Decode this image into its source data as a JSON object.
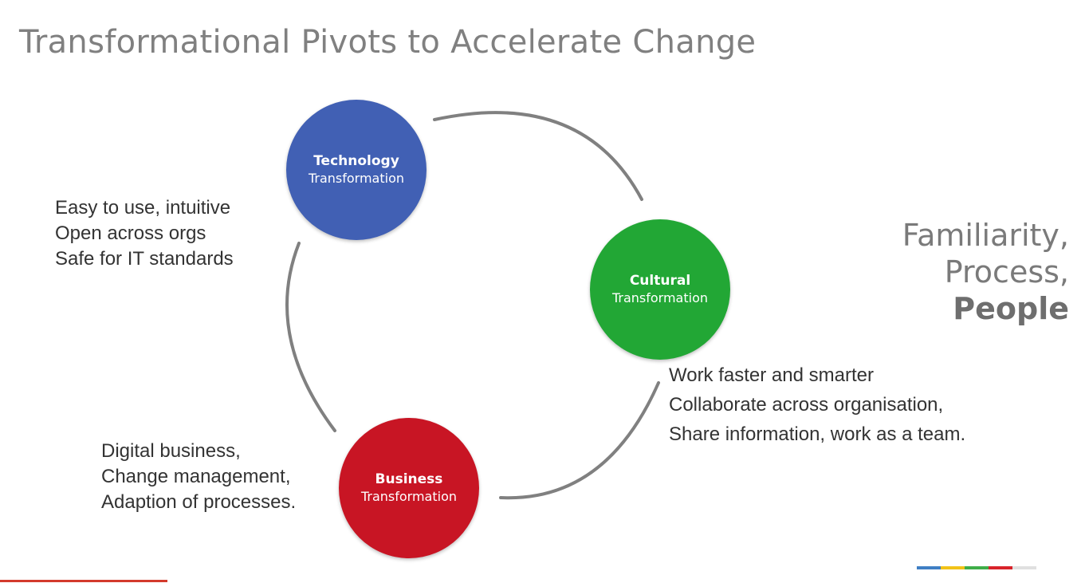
{
  "title": "Transformational Pivots to Accelerate Change",
  "nodes": {
    "technology": {
      "label_bold": "Technology",
      "label": "Transformation",
      "color": "#4160b4"
    },
    "cultural": {
      "label_bold": "Cultural",
      "label": "Transformation",
      "color": "#22a735"
    },
    "business": {
      "label_bold": "Business",
      "label": "Transformation",
      "color": "#c81524"
    }
  },
  "notes": {
    "technology": [
      "Easy to use, intuitive",
      "Open across orgs",
      "Safe for IT standards"
    ],
    "business": [
      "Digital business,",
      "Change management,",
      "Adaption of processes."
    ],
    "cultural": [
      "Work faster and smarter",
      "Collaborate across organisation,",
      "Share information, work as a team."
    ]
  },
  "side_text": [
    "Familiarity,",
    "Process,",
    "People"
  ],
  "colors": {
    "arc": "#808080",
    "brand_bar": [
      "#3f7fc4",
      "#f2c318",
      "#3fae49",
      "#d8232a",
      "#e0e0e0"
    ]
  }
}
